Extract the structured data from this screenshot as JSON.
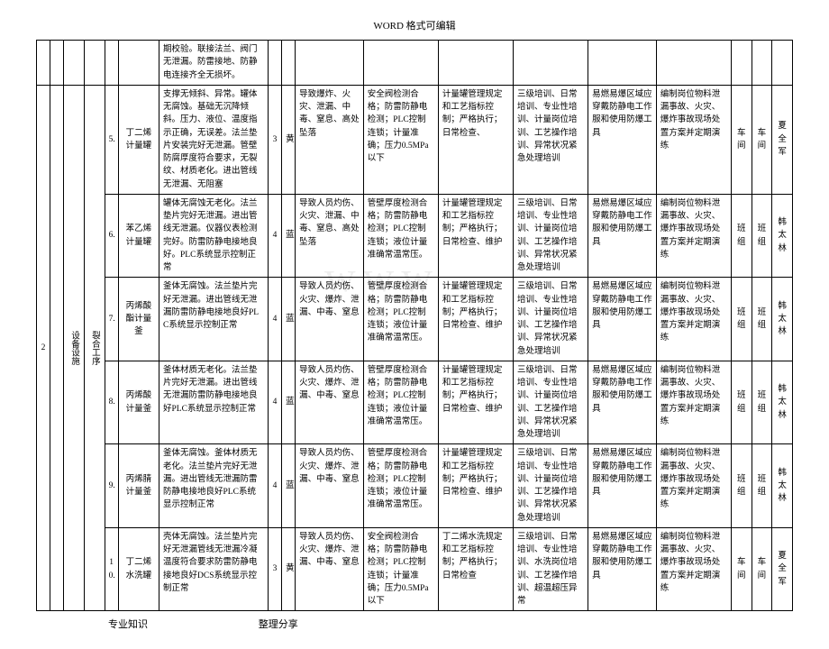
{
  "header_text": "WORD 格式可编辑",
  "footer_left": "专业知识",
  "footer_right": "整理分享",
  "watermark": "www",
  "colwidths": [
    "2%",
    "2%",
    "3%",
    "3%",
    "2%",
    "6%",
    "16%",
    "2%",
    "2%",
    "10%",
    "11%",
    "11%",
    "11%",
    "10%",
    "11%",
    "3%",
    "3%",
    "3%"
  ],
  "row_top": {
    "c1": "",
    "c2": "",
    "c3": "",
    "c4": "",
    "c5": "",
    "c6": "期校验。联接法兰、阀门无泄漏。防雷接地、防静电连接齐全无损坏。",
    "c7": "",
    "c8": "",
    "c9": "",
    "c10": "",
    "c11": "",
    "c12": "",
    "c13": "",
    "c14": "",
    "c15": "",
    "c16": "",
    "c17": ""
  },
  "group": {
    "seq": "2",
    "cat1": "设备设施",
    "cat2": "裂合工序"
  },
  "rows": [
    {
      "no": "5.",
      "name": "丁二烯计量罐",
      "desc": "支撑无倾斜、异常。罐体无腐蚀。基础无沉降倾斜。压力、液位、温度指示正确，无误差。法兰垫片安装完好无泄漏。管壁防腐厚度符合要求，无裂纹、材质老化。进出管线无泄漏、无阻塞",
      "n1": "3",
      "n2": "黄",
      "c1": "导致爆炸、火灾、泄漏、中毒、窒息、高处坠落",
      "c2": "安全阀检测合格；防雷防静电检测；PLC控制连锁；计量准确；压力0.5MPa以下",
      "c3": "计量罐管理规定和工艺指标控制；严格执行；日常检查、",
      "c4": "三级培训、日常培训、专业性培训、计量岗位培训、工艺操作培训、异常状况紧急处理培训",
      "c5": "易燃易爆区域应穿戴防静电工作服和使用防爆工具",
      "c6": "编制岗位物料泄漏事故、火灾、爆炸事故现场处置方案并定期演练",
      "r1": "车间",
      "r2": "车间",
      "r3": "夏全军"
    },
    {
      "no": "6.",
      "name": "苯乙烯计量罐",
      "desc": "罐体无腐蚀无老化。法兰垫片完好无泄漏。进出管线无泄漏。仪器仪表检测完好。防雷防静电接地良好。PLC系统显示控制正常",
      "n1": "4",
      "n2": "蓝",
      "c1": "导致人员灼伤、火灾、泄漏、中毒、窒息、高处坠落",
      "c2": "管壁厚度检测合格；防雷防静电检测；PLC控制连锁；液位计量准确常温常压。",
      "c3": "计量罐管理规定和工艺指标控制；严格执行；日常检查、维护",
      "c4": "三级培训、日常培训、专业性培训、计量岗位培训、工艺操作培训、异常状况紧急处理培训",
      "c5": "易燃易爆区域应穿戴防静电工作服和使用防爆工具",
      "c6": "编制岗位物料泄漏事故、火灾、爆炸事故现场处置方案并定期演练",
      "r1": "班组",
      "r2": "班组",
      "r3": "韩太林"
    },
    {
      "no": "7.",
      "name": "丙烯酸酯计量釜",
      "desc": "釜体无腐蚀。法兰垫片完好无泄漏。进出管线无泄漏防雷防静电接地良好PLC系统显示控制正常",
      "n1": "4",
      "n2": "蓝",
      "c1": "导致人员灼伤、火灾、爆炸、泄漏、中毒、窒息",
      "c2": "管壁厚度检测合格；防雷防静电检测；PLC控制连锁；液位计量准确常温常压。",
      "c3": "计量罐管理规定和工艺指标控制；严格执行；日常检查、维护",
      "c4": "三级培训、日常培训、专业性培训、计量岗位培训、工艺操作培训、异常状况紧急处理培训",
      "c5": "易燃易爆区域应穿戴防静电工作服和使用防爆工具",
      "c6": "编制岗位物料泄漏事故、火灾、爆炸事故现场处置方案并定期演练",
      "r1": "班组",
      "r2": "班组",
      "r3": "韩太林"
    },
    {
      "no": "8.",
      "name": "丙烯酸计量釜",
      "desc": "釜体材质无老化。法兰垫片完好无泄漏。进出管线无泄漏防雷防静电接地良好PLC系统显示控制正常",
      "n1": "4",
      "n2": "蓝",
      "c1": "导致人员灼伤、火灾、爆炸、泄漏、中毒、窒息",
      "c2": "管壁厚度检测合格；防雷防静电检测；PLC控制连锁；液位计量准确常温常压。",
      "c3": "计量罐管理规定和工艺指标控制；严格执行；日常检查、维护",
      "c4": "三级培训、日常培训、专业性培训、计量岗位培训、工艺操作培训、异常状况紧急处理培训",
      "c5": "易燃易爆区域应穿戴防静电工作服和使用防爆工具",
      "c6": "编制岗位物料泄漏事故、火灾、爆炸事故现场处置方案并定期演练",
      "r1": "班组",
      "r2": "班组",
      "r3": "韩太林"
    },
    {
      "no": "9.",
      "name": "丙烯腈计量釜",
      "desc": "釜体无腐蚀。釜体材质无老化。法兰垫片完好无泄漏。进出管线无泄漏防雷防静电接地良好PLC系统显示控制正常",
      "n1": "4",
      "n2": "蓝",
      "c1": "导致人员灼伤、火灾、爆炸、泄漏、中毒、窒息",
      "c2": "管壁厚度检测合格；防雷防静电检测；PLC控制连锁；液位计量准确常温常压。",
      "c3": "计量罐管理规定和工艺指标控制；严格执行；日常检查、维护",
      "c4": "三级培训、日常培训、专业性培训、计量岗位培训、工艺操作培训、异常状况紧急处理培训",
      "c5": "易燃易爆区域应穿戴防静电工作服和使用防爆工具",
      "c6": "编制岗位物料泄漏事故、火灾、爆炸事故现场处置方案并定期演练",
      "r1": "班组",
      "r2": "班组",
      "r3": "韩太林"
    },
    {
      "no": "10.",
      "name": "丁二烯水洗罐",
      "desc": "壳体无腐蚀。法兰垫片完好无泄漏管线无泄漏冷凝温度符合要求防雷防静电接地良好DCS系统显示控制正常",
      "n1": "3",
      "n2": "黄",
      "c1": "导致人员灼伤、火灾、爆炸、泄漏、中毒、窒息",
      "c2": "安全阀检测合格；防雷防静电检测；PLC控制连锁；计量准确；压力0.5MPa以下",
      "c3": "丁二烯水洗规定和工艺指标控制；严格执行；日常检查",
      "c4": "三级培训、日常培训、专业性培训、水洗岗位培训、工艺操作培训、超温超压异常",
      "c5": "易燃易爆区域应穿戴防静电工作服和使用防爆工具",
      "c6": "编制岗位物料泄漏事故、火灾、爆炸事故现场处置方案并定期演练",
      "r1": "车间",
      "r2": "车间",
      "r3": "夏全军"
    }
  ]
}
